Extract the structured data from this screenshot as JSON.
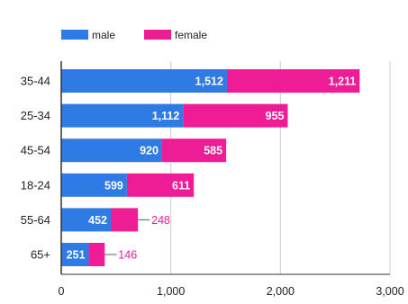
{
  "chart_data": {
    "type": "bar",
    "orientation": "horizontal",
    "stacked": true,
    "categories": [
      "35-44",
      "25-34",
      "45-54",
      "18-24",
      "55-64",
      "65+"
    ],
    "series": [
      {
        "name": "male",
        "values": [
          1512,
          1112,
          920,
          599,
          452,
          251
        ],
        "labels": [
          "1,512",
          "1,112",
          "920",
          "599",
          "452",
          "251"
        ],
        "color": "#2f7be6"
      },
      {
        "name": "female",
        "values": [
          1211,
          955,
          585,
          611,
          248,
          146
        ],
        "labels": [
          "1,211",
          "955",
          "585",
          "611",
          "248",
          "146"
        ],
        "color": "#ee1d96"
      }
    ],
    "xlim": [
      0,
      3000
    ],
    "xticks": [
      0,
      1000,
      2000,
      3000
    ],
    "xtick_labels": [
      "0",
      "1,000",
      "2,000",
      "3,000"
    ],
    "grid": true,
    "legend": "top-left",
    "label_color_inside": "#ffffff",
    "label_color_outside": "#ee1d96",
    "axis_color": "#333333",
    "grid_color": "#cccccc",
    "text_color": "#222222"
  }
}
